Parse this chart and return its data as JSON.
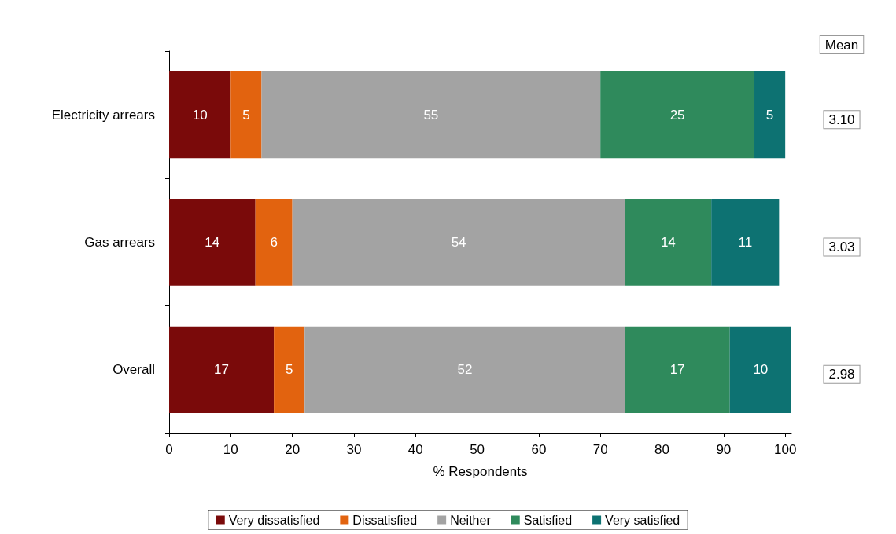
{
  "chart_data": {
    "type": "bar",
    "orientation": "horizontal",
    "stacked": true,
    "xlabel": "% Respondents",
    "categories": [
      "Electricity arrears",
      "Gas arrears",
      "Overall"
    ],
    "series": [
      {
        "name": "Very dissatisfied",
        "color": "#7a0a0a",
        "values": [
          10,
          14,
          17
        ]
      },
      {
        "name": "Dissatisfied",
        "color": "#e2630f",
        "values": [
          5,
          6,
          5
        ]
      },
      {
        "name": "Neither",
        "color": "#a3a3a3",
        "values": [
          55,
          54,
          52
        ]
      },
      {
        "name": "Satisfied",
        "color": "#2f8a5c",
        "values": [
          25,
          14,
          17
        ]
      },
      {
        "name": "Very satisfied",
        "color": "#0d7272",
        "values": [
          5,
          11,
          10
        ]
      }
    ],
    "xlim": [
      0,
      101
    ],
    "xticks": [
      0,
      10,
      20,
      30,
      40,
      50,
      60,
      70,
      80,
      90,
      100
    ],
    "data_labels": true,
    "legend": "bottom",
    "grid": false,
    "annotations": [
      "Mean",
      "3.10",
      "3.03",
      "2.98"
    ]
  }
}
